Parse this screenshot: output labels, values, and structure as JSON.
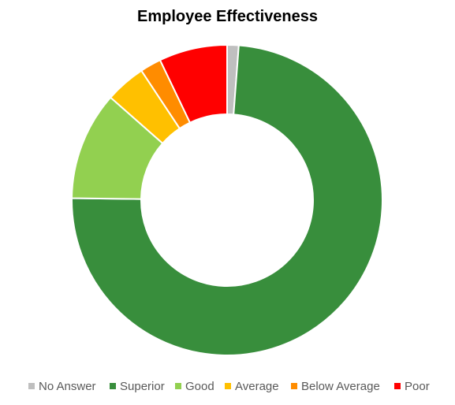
{
  "chart_data": {
    "type": "pie",
    "subtype": "donut",
    "title": "Employee Effectiveness",
    "legend_position": "bottom",
    "series": [
      {
        "name": "No Answer",
        "value": 1.2,
        "color": "#bfbfbf"
      },
      {
        "name": "Superior",
        "value": 74.0,
        "color": "#388e3c"
      },
      {
        "name": "Good",
        "value": 11.3,
        "color": "#92d050"
      },
      {
        "name": "Average",
        "value": 4.2,
        "color": "#ffc000"
      },
      {
        "name": "Below Average",
        "value": 2.2,
        "color": "#ff8c00"
      },
      {
        "name": "Poor",
        "value": 7.1,
        "color": "#ff0000"
      }
    ]
  }
}
